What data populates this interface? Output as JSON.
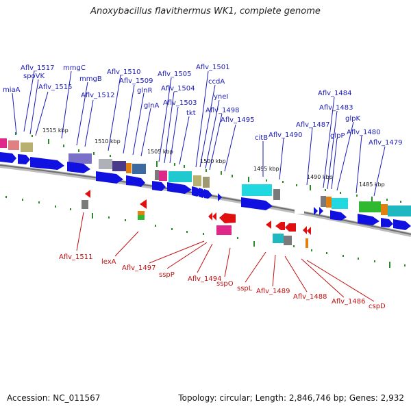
{
  "title": "Anoxybacillus flavithermus WK1, complete genome",
  "footer": {
    "accession": "Accession: NC_011567",
    "summary": "Topology: circular; Length: 2,846,746 bp; Genes: 2,932"
  },
  "colors": {
    "upper_label": "#1a1ab8",
    "lower_label": "#c01010",
    "forward_gene": "#1010e0",
    "reverse_gene": "#e01010",
    "backbone": "#7a7a7a",
    "tick_dot": "#2a8a2a"
  },
  "ticks": [
    "1515 kbp",
    "1510 kbp",
    "1505 kbp",
    "1500 kbp",
    "1495 kbp",
    "1490 kbp",
    "1485 kbp"
  ],
  "upper_labels": [
    "miaA",
    "Aflv_1517",
    "spoVK",
    "Aflv_1515",
    "mmgC",
    "mmgB",
    "Aflv_1512",
    "Aflv_1510",
    "Aflv_1509",
    "glnR",
    "glnA",
    "Aflv_1505",
    "Aflv_1504",
    "Aflv_1503",
    "tkt",
    "Aflv_1501",
    "ccdA",
    "yneI",
    "Aflv_1498",
    "Aflv_1495",
    "citB",
    "Aflv_1490",
    "Aflv_1487",
    "Aflv_1484",
    "Aflv_1483",
    "glpP",
    "glpK",
    "Aflv_1480",
    "Aflv_1479"
  ],
  "lower_labels": [
    "Aflv_1511",
    "lexA",
    "Aflv_1497",
    "sspP",
    "Aflv_1494",
    "sspO",
    "sspL",
    "Aflv_1489",
    "Aflv_1488",
    "Aflv_1486",
    "cspD"
  ]
}
